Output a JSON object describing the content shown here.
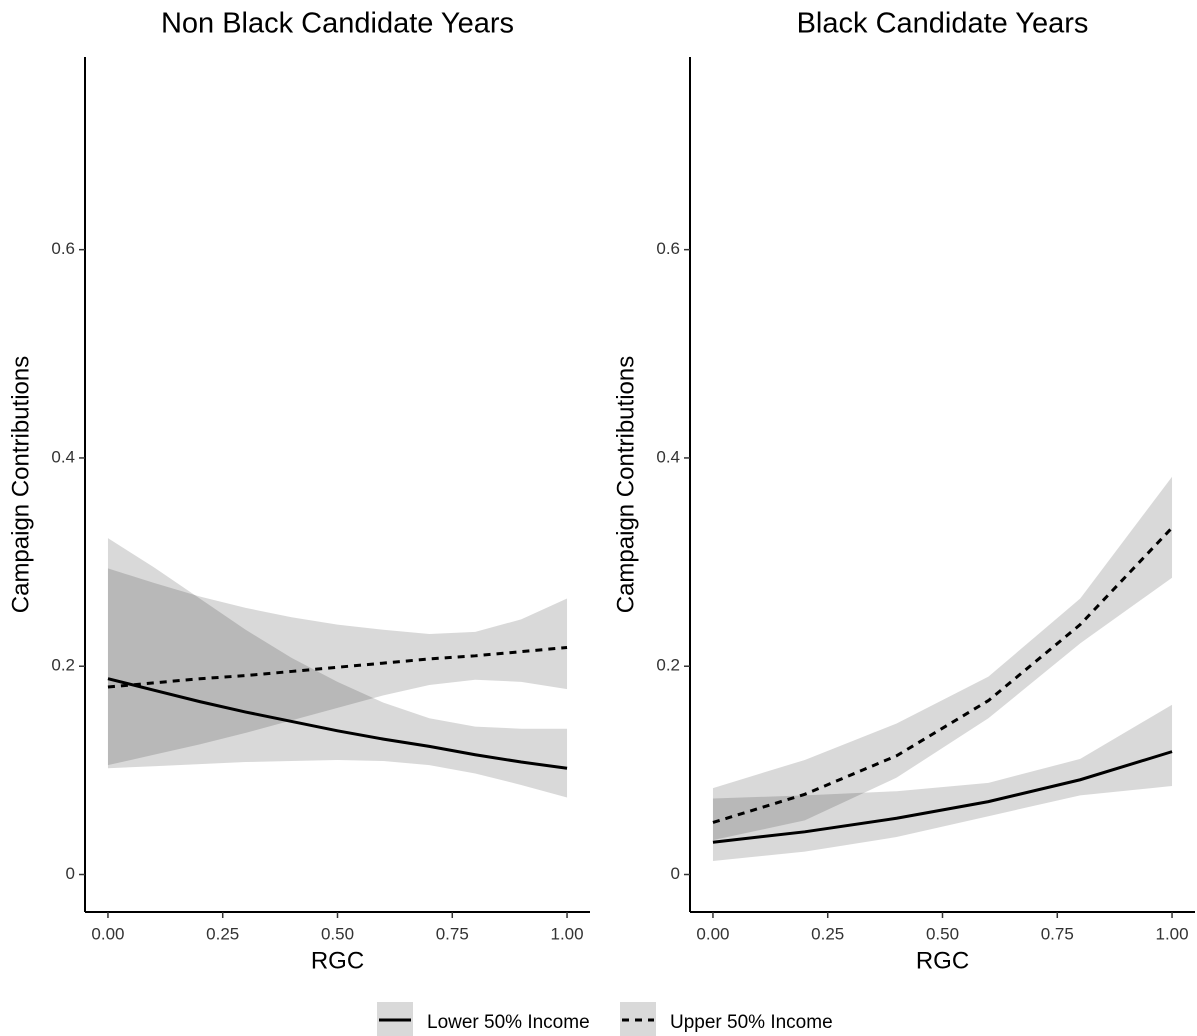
{
  "chart_data": [
    {
      "type": "line",
      "title": "Non Black Candidate Years",
      "xlabel": "RGC",
      "ylabel": "Campaign Contributions",
      "x": [
        0,
        0.1,
        0.2,
        0.3,
        0.4,
        0.5,
        0.6,
        0.7,
        0.8,
        0.9,
        1.0
      ],
      "xlim": [
        -0.05,
        1.05
      ],
      "ylim": [
        -0.036,
        0.785
      ],
      "xticks": [
        {
          "value": 0,
          "label": "0.00"
        },
        {
          "value": 0.25,
          "label": "0.25"
        },
        {
          "value": 0.5,
          "label": "0.50"
        },
        {
          "value": 0.75,
          "label": "0.75"
        },
        {
          "value": 1,
          "label": "1.00"
        }
      ],
      "yticks": [
        0,
        0.2,
        0.4,
        0.6
      ],
      "grid": false,
      "legend": "bottom",
      "series": [
        {
          "name": "Lower 50% Income",
          "color": "#000000",
          "dash": false,
          "values": [
            0.188,
            0.177,
            0.166,
            0.156,
            0.147,
            0.138,
            0.13,
            0.123,
            0.115,
            0.108,
            0.102
          ],
          "upper": [
            0.323,
            0.295,
            0.265,
            0.235,
            0.208,
            0.185,
            0.165,
            0.15,
            0.142,
            0.14,
            0.14
          ],
          "lower": [
            0.102,
            0.104,
            0.106,
            0.108,
            0.109,
            0.11,
            0.109,
            0.105,
            0.097,
            0.086,
            0.074
          ]
        },
        {
          "name": "Upper 50% Income",
          "color": "#000000",
          "dash": true,
          "values": [
            0.18,
            0.184,
            0.188,
            0.191,
            0.195,
            0.199,
            0.203,
            0.207,
            0.21,
            0.214,
            0.218
          ],
          "upper": [
            0.294,
            0.28,
            0.267,
            0.256,
            0.247,
            0.24,
            0.235,
            0.231,
            0.233,
            0.245,
            0.265
          ],
          "lower": [
            0.105,
            0.115,
            0.125,
            0.136,
            0.148,
            0.16,
            0.172,
            0.182,
            0.187,
            0.185,
            0.178
          ]
        }
      ]
    },
    {
      "type": "line",
      "title": "Black Candidate Years",
      "xlabel": "RGC",
      "ylabel": "Campaign Contributions",
      "x": [
        0,
        0.2,
        0.4,
        0.6,
        0.8,
        1.0
      ],
      "xlim": [
        -0.05,
        1.05
      ],
      "ylim": [
        -0.036,
        0.785
      ],
      "xticks": [
        {
          "value": 0,
          "label": "0.00"
        },
        {
          "value": 0.25,
          "label": "0.25"
        },
        {
          "value": 0.5,
          "label": "0.50"
        },
        {
          "value": 0.75,
          "label": "0.75"
        },
        {
          "value": 1,
          "label": "1.00"
        }
      ],
      "yticks": [
        0,
        0.2,
        0.4,
        0.6
      ],
      "grid": false,
      "series": [
        {
          "color": "#000000",
          "dash": false,
          "values": [
            0.031,
            0.041,
            0.054,
            0.07,
            0.091,
            0.118
          ],
          "upper": [
            0.073,
            0.076,
            0.08,
            0.088,
            0.111,
            0.163
          ],
          "lower": [
            0.013,
            0.022,
            0.036,
            0.056,
            0.076,
            0.085
          ]
        },
        {
          "color": "#000000",
          "dash": true,
          "values": [
            0.05,
            0.077,
            0.114,
            0.167,
            0.24,
            0.333
          ],
          "upper": [
            0.083,
            0.11,
            0.145,
            0.19,
            0.265,
            0.382
          ],
          "lower": [
            0.033,
            0.052,
            0.093,
            0.15,
            0.222,
            0.285
          ]
        }
      ]
    }
  ]
}
